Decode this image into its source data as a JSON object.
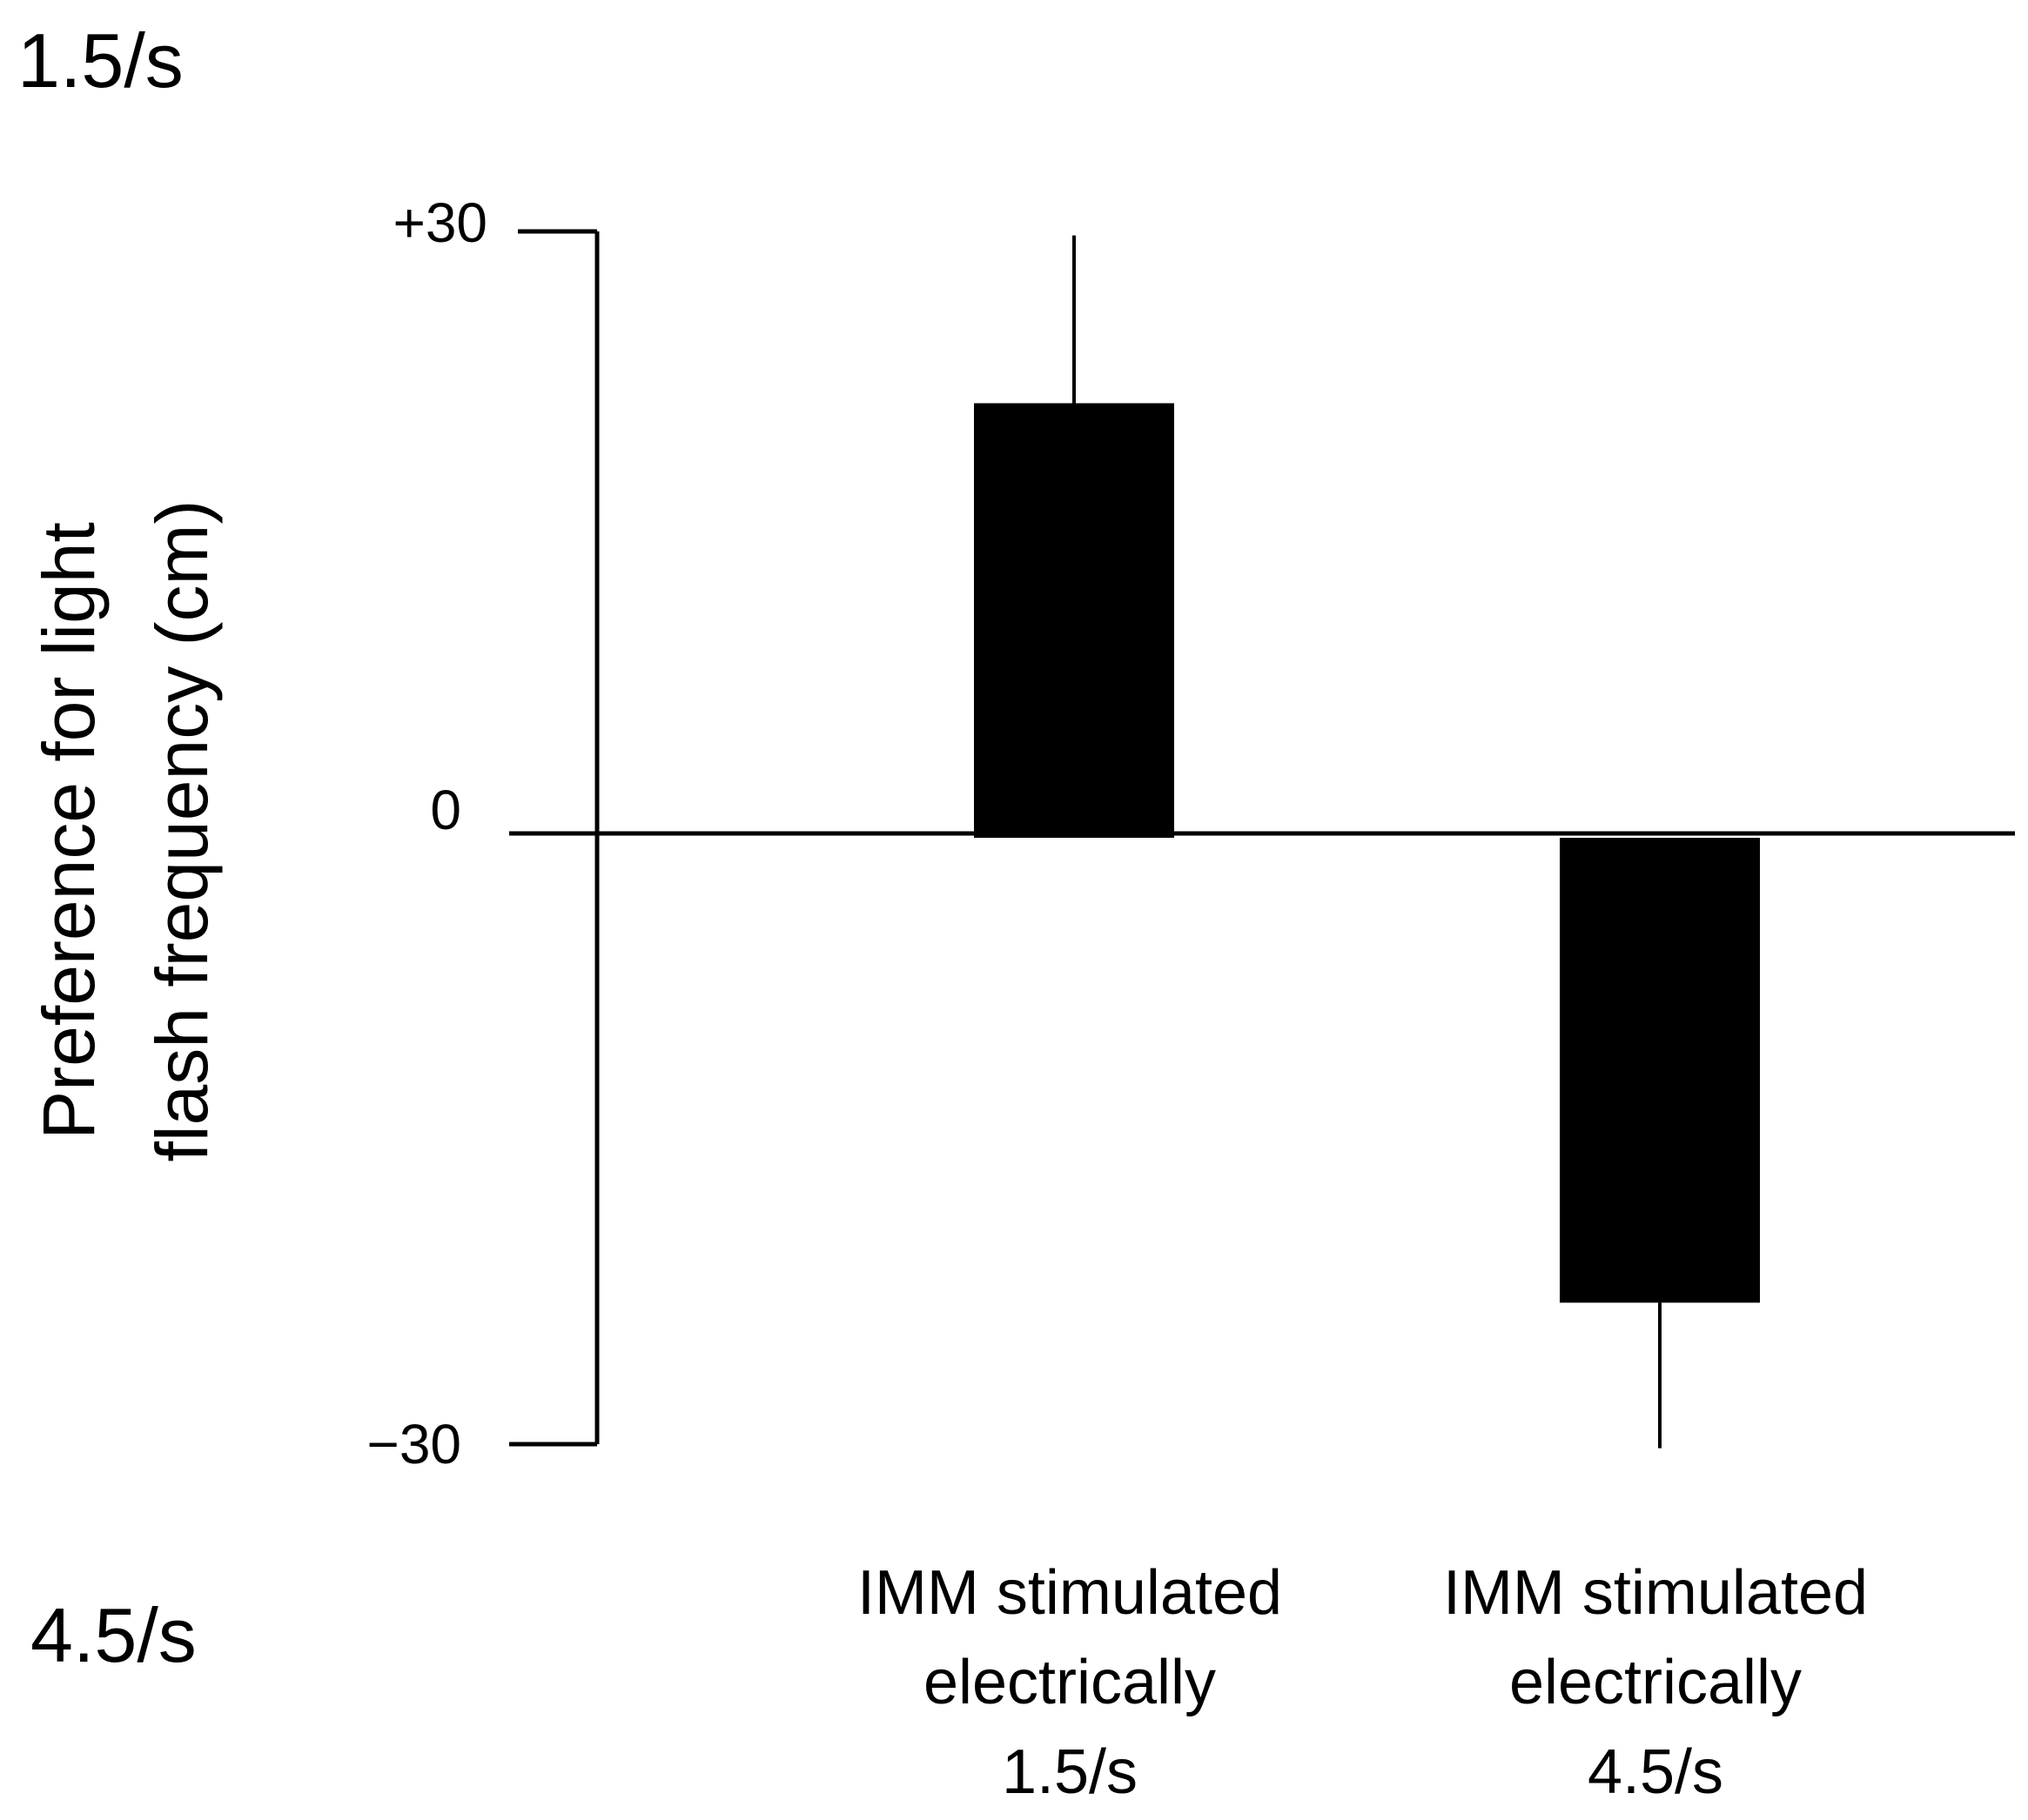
{
  "corner_labels": {
    "top": "1.5/s",
    "bottom": "4.5/s"
  },
  "chart_data": {
    "type": "bar",
    "categories": [
      [
        "IMM stimulated",
        "electrically",
        "1.5/s"
      ],
      [
        "IMM stimulated",
        "electrically",
        "4.5/s"
      ]
    ],
    "values": [
      21.5,
      -23
    ],
    "error_bars": [
      8.3,
      7.2
    ],
    "ylabel": [
      "Preference for light",
      "flash frequency (cm)"
    ],
    "ylim": [
      -30,
      30
    ],
    "yticks": [
      {
        "value": 30,
        "label": "+30"
      },
      {
        "value": 0,
        "label": "0"
      },
      {
        "value": -30,
        "label": "−30"
      }
    ],
    "bar_color": "#000000",
    "grid": false,
    "legend": "none"
  }
}
